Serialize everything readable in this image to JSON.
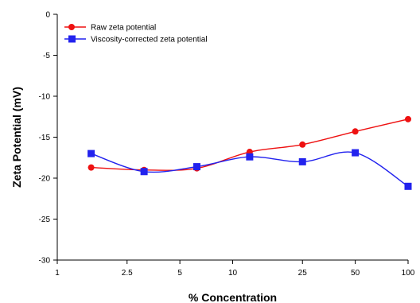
{
  "chart_data": {
    "type": "line",
    "title": "",
    "xlabel": "% Concentration",
    "ylabel": "Zeta Potential (mV)",
    "x_scale": "log",
    "xlim": [
      1,
      100
    ],
    "ylim": [
      -30,
      0
    ],
    "grid": false,
    "legend_position": "top-left",
    "x_ticks": [
      1,
      2.5,
      5,
      10,
      25,
      50,
      100
    ],
    "x_tick_labels": [
      "1",
      "2.5",
      "5",
      "10",
      "25",
      "50",
      "100"
    ],
    "y_ticks": [
      0,
      -5,
      -10,
      -15,
      -20,
      -25,
      -30
    ],
    "y_tick_labels": [
      "0",
      "-5",
      "-10",
      "-15",
      "-20",
      "-25",
      "-30"
    ],
    "x": [
      1.56,
      3.125,
      6.25,
      12.5,
      25,
      50,
      100
    ],
    "series": [
      {
        "name": "Raw zeta potential",
        "color": "#ee1111",
        "marker": "circle",
        "values": [
          -18.7,
          -19.0,
          -18.8,
          -16.8,
          -15.9,
          -14.3,
          -12.8
        ]
      },
      {
        "name": "Viscosity-corrected zeta potential",
        "color": "#2222ee",
        "marker": "square",
        "values": [
          -17.0,
          -19.2,
          -18.6,
          -17.4,
          -18.0,
          -16.9,
          -21.0
        ]
      }
    ]
  }
}
